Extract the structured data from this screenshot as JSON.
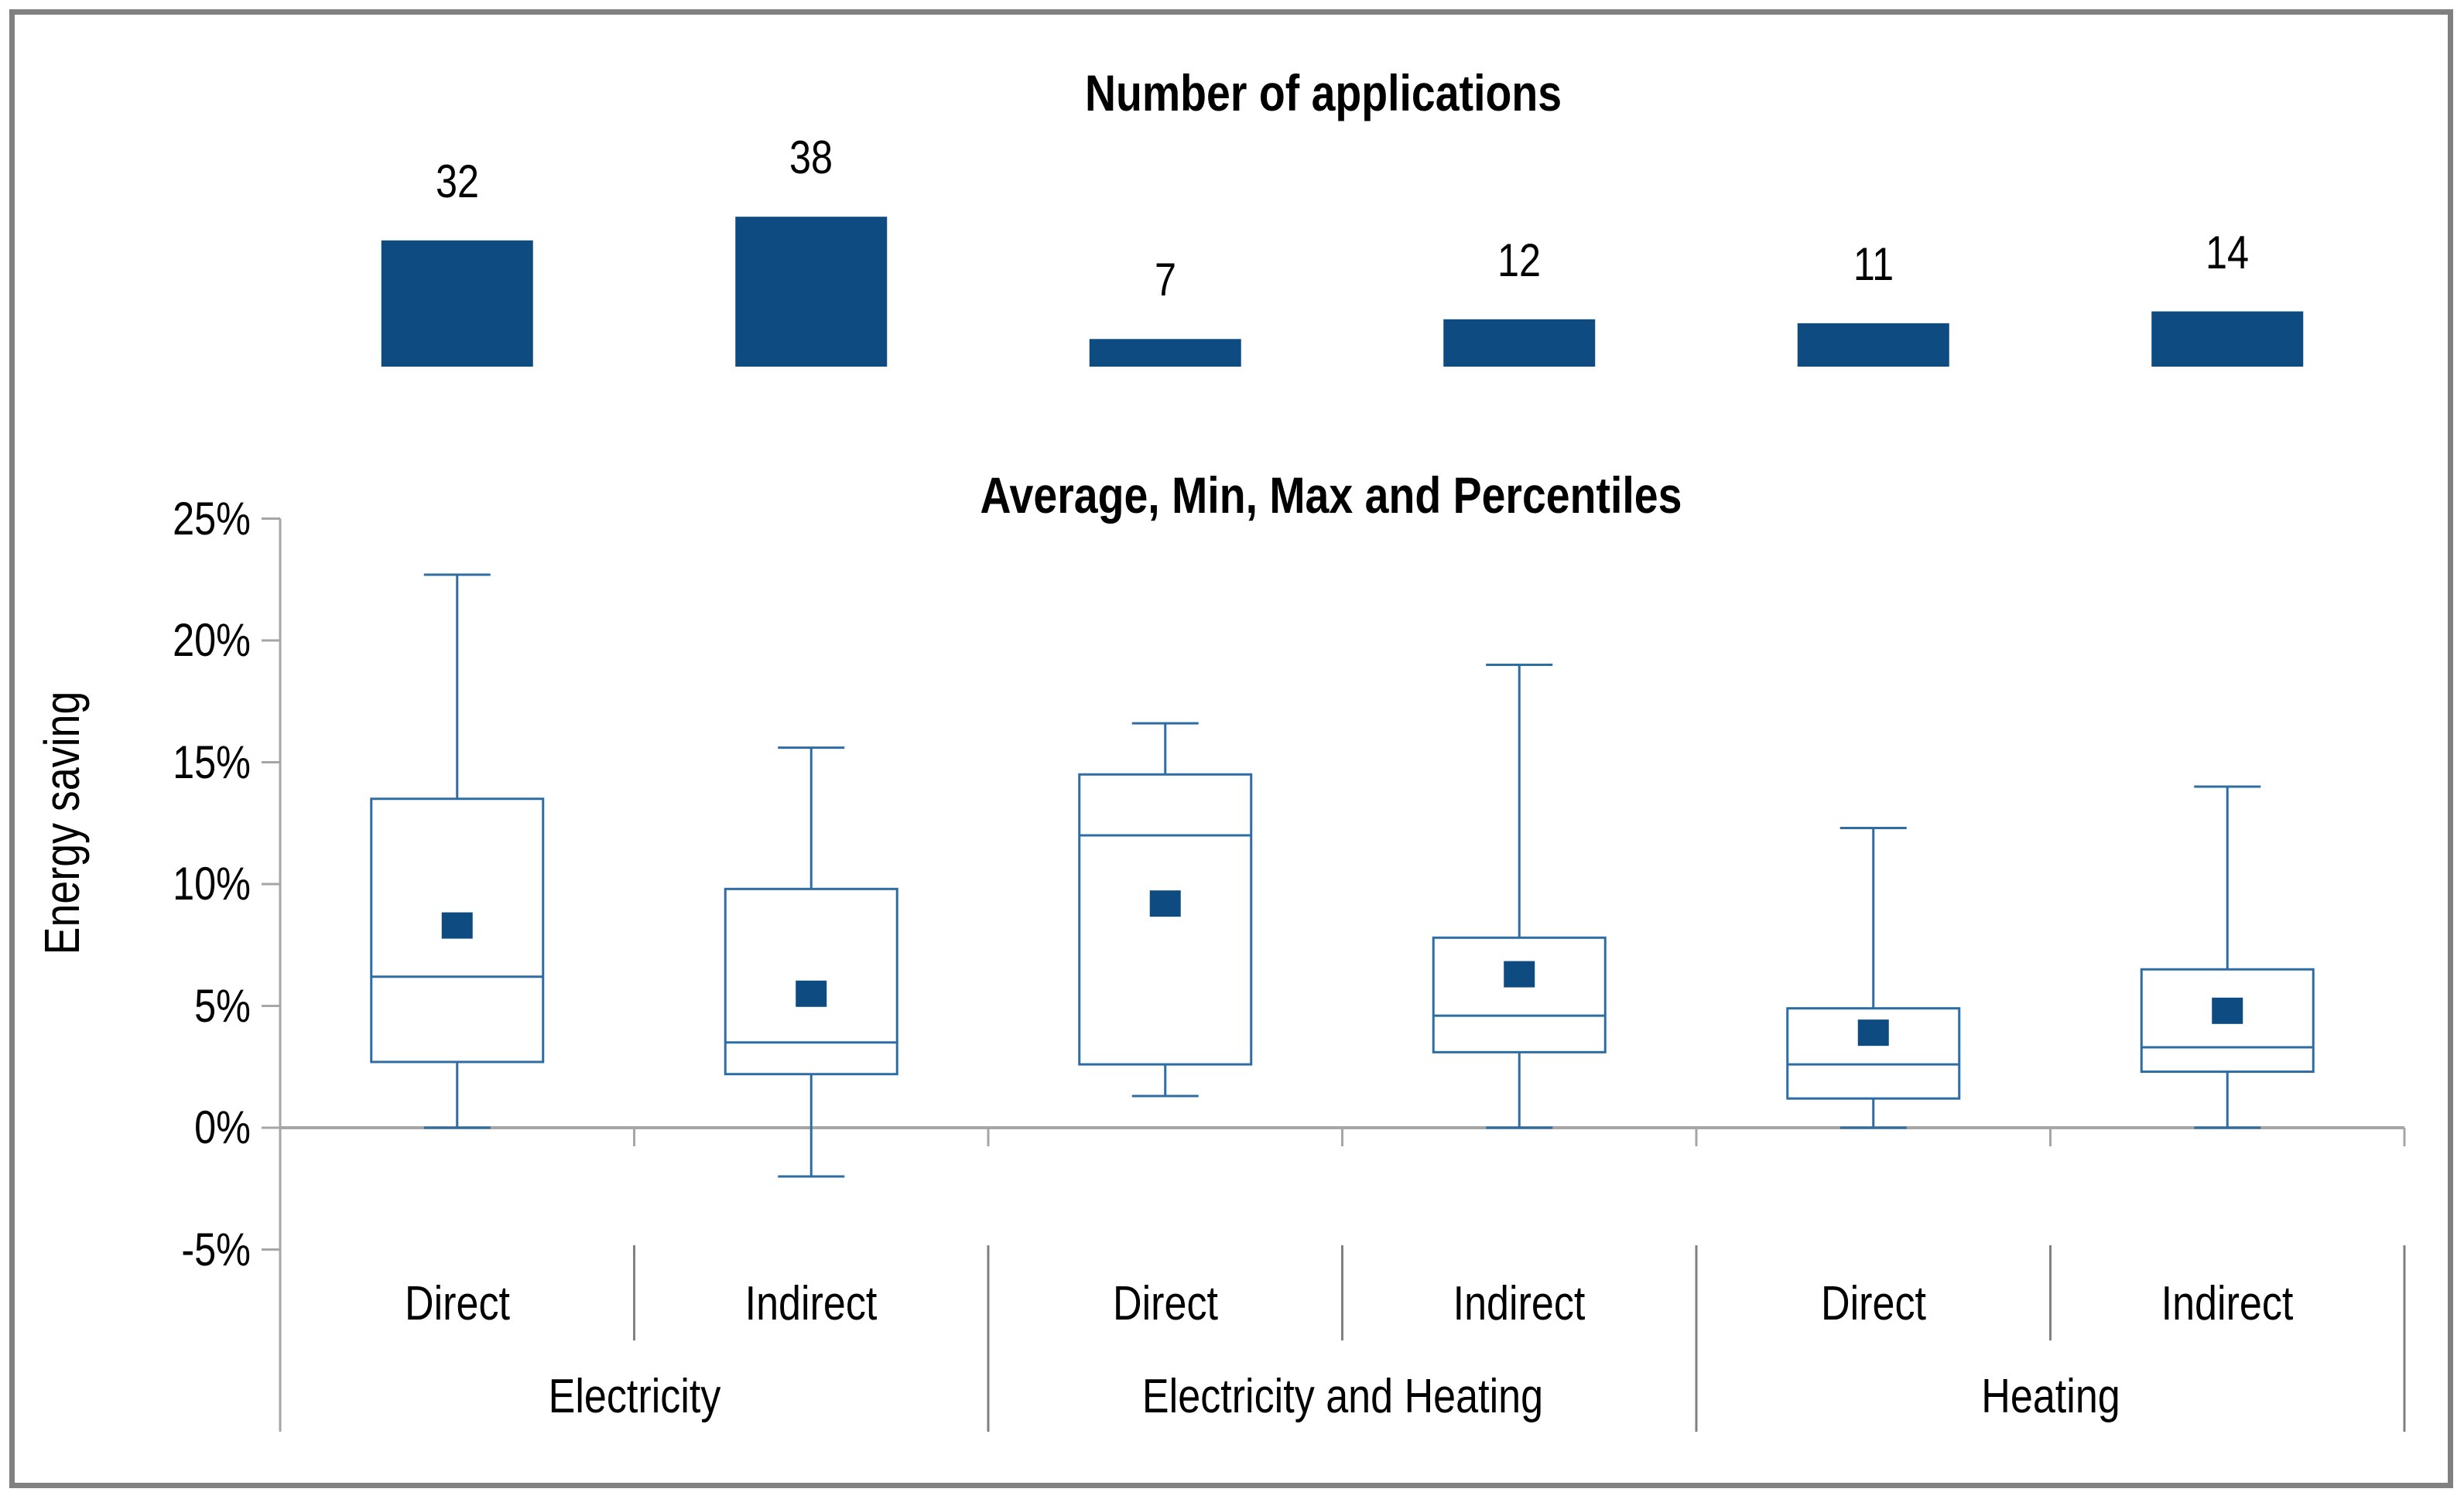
{
  "colors": {
    "bar_fill": "#0d4b80",
    "mean_fill": "#0d4b80",
    "box_stroke": "#2d6da3",
    "axis": "#a6a6a6",
    "separator": "#808080",
    "border": "#808080",
    "text": "#000000"
  },
  "chart_data": [
    {
      "type": "bar",
      "title": "Number of applications",
      "categories": [
        "Electricity Direct",
        "Electricity Indirect",
        "Electricity and Heating Direct",
        "Electricity and Heating Indirect",
        "Heating Direct",
        "Heating Indirect"
      ],
      "values": [
        32,
        38,
        7,
        12,
        11,
        14
      ],
      "xlabel": "",
      "ylabel": "",
      "ylim": [
        0,
        38
      ],
      "grid": false,
      "legend": "none",
      "data_labels": [
        "32",
        "38",
        "7",
        "12",
        "11",
        "14"
      ]
    },
    {
      "type": "box",
      "title": "Average, Min, Max and Percentiles",
      "ylabel": "Energy saving",
      "ylim": [
        -5,
        25
      ],
      "grid": false,
      "legend": "none",
      "ytick_values": [
        25,
        20,
        15,
        10,
        5,
        0,
        -5
      ],
      "ytick_labels": [
        "25%",
        "20%",
        "15%",
        "10%",
        "5%",
        "0%",
        "-5%"
      ],
      "sub_labels": [
        "Direct",
        "Indirect",
        "Direct",
        "Indirect",
        "Direct",
        "Indirect"
      ],
      "group_labels": [
        "Electricity",
        "Electricity and Heating",
        "Heating"
      ],
      "series": [
        {
          "name": "Electricity Direct",
          "min": 0,
          "q1": 2.7,
          "median": 6.2,
          "q3": 13.5,
          "max": 22.7,
          "mean": 8.3
        },
        {
          "name": "Electricity Indirect",
          "min": -2,
          "q1": 2.2,
          "median": 3.5,
          "q3": 9.8,
          "max": 15.6,
          "mean": 5.5
        },
        {
          "name": "Electricity and Heating Direct",
          "min": 1.3,
          "q1": 2.6,
          "median": 12,
          "q3": 14.5,
          "max": 16.6,
          "mean": 9.2
        },
        {
          "name": "Electricity and Heating Indirect",
          "min": 0,
          "q1": 3.1,
          "median": 4.6,
          "q3": 7.8,
          "max": 19,
          "mean": 6.3
        },
        {
          "name": "Heating Direct",
          "min": 0,
          "q1": 1.2,
          "median": 2.6,
          "q3": 4.9,
          "max": 12.3,
          "mean": 3.9
        },
        {
          "name": "Heating Indirect",
          "min": 0,
          "q1": 2.3,
          "median": 3.3,
          "q3": 6.5,
          "max": 14,
          "mean": 4.8
        }
      ]
    }
  ]
}
